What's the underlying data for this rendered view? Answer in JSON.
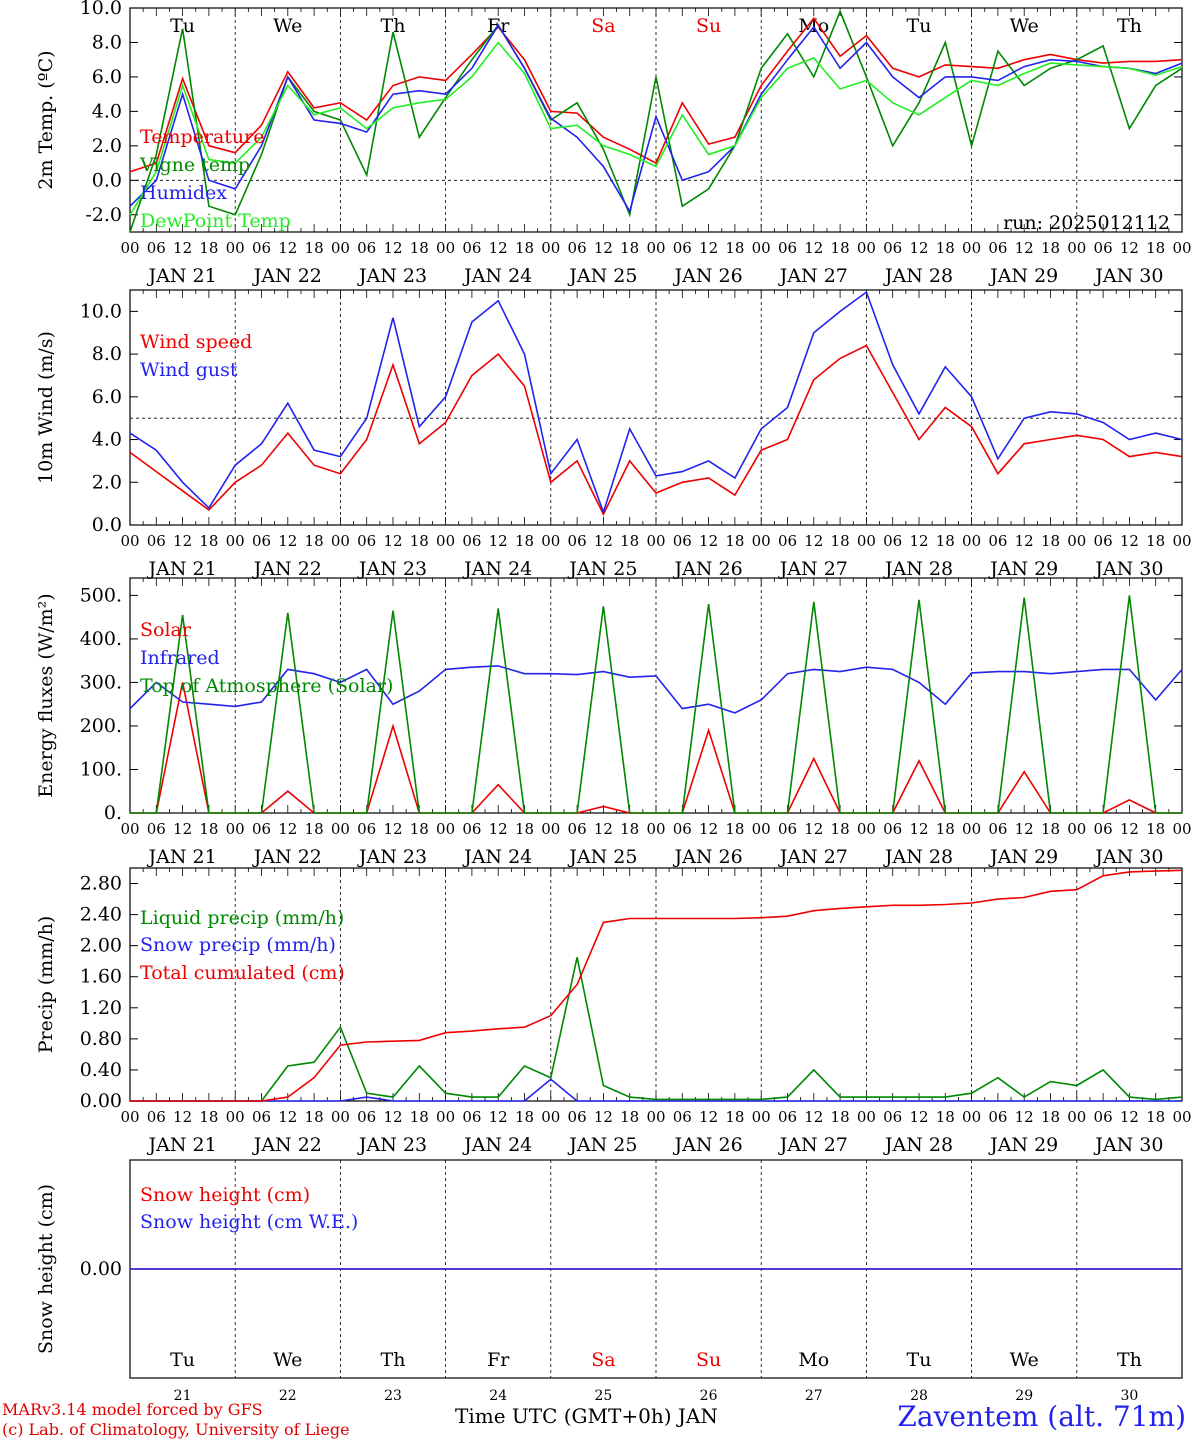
{
  "run_label": "run: 2025012112",
  "day_letters": [
    {
      "label": "Tu",
      "color": "#000000"
    },
    {
      "label": "We",
      "color": "#000000"
    },
    {
      "label": "Th",
      "color": "#000000"
    },
    {
      "label": "Fr",
      "color": "#000000"
    },
    {
      "label": "Sa",
      "color": "#ee0000"
    },
    {
      "label": "Su",
      "color": "#ee0000"
    },
    {
      "label": "Mo",
      "color": "#000000"
    },
    {
      "label": "Tu",
      "color": "#000000"
    },
    {
      "label": "We",
      "color": "#000000"
    },
    {
      "label": "Th",
      "color": "#000000"
    }
  ],
  "date_labels": [
    "JAN 21",
    "JAN 22",
    "JAN 23",
    "JAN 24",
    "JAN 25",
    "JAN 26",
    "JAN 27",
    "JAN 28",
    "JAN 29",
    "JAN 30"
  ],
  "hour_ticks": [
    "00",
    "06",
    "12",
    "18"
  ],
  "day_numbers": [
    "21",
    "22",
    "23",
    "24",
    "25",
    "26",
    "27",
    "28",
    "29",
    "30"
  ],
  "x_title": "Time UTC (GMT+0h) JAN",
  "footer": {
    "line1": "MARv3.14 model forced by GFS",
    "line2": "(c) Lab. of Climatology, University of Liege"
  },
  "station": "Zaventem (alt. 71m)",
  "chart_data": [
    {
      "type": "line",
      "ylabel": "2m Temp. (ºC)",
      "ylim": [
        -3,
        10
      ],
      "yticks": [
        "-2.0",
        "0.0",
        "2.0",
        "4.0",
        "6.0",
        "8.0",
        "10.0"
      ],
      "ytick_values": [
        -2,
        0,
        2,
        4,
        6,
        8,
        10
      ],
      "ref_line": 0,
      "x_hours": [
        0,
        6,
        12,
        18,
        24,
        30,
        36,
        42,
        48,
        54,
        60,
        66,
        72,
        78,
        84,
        90,
        96,
        102,
        108,
        114,
        120,
        126,
        132,
        138,
        144,
        150,
        156,
        162,
        168,
        174,
        180,
        186,
        192,
        198,
        204,
        210,
        216,
        222,
        228,
        234,
        240
      ],
      "series": [
        {
          "name": "Temperature",
          "color": "#ee0000",
          "values": [
            0.5,
            1.0,
            5.9,
            2.0,
            1.6,
            3.2,
            6.3,
            4.2,
            4.5,
            3.5,
            5.5,
            6.0,
            5.8,
            7.3,
            8.9,
            7.0,
            4.0,
            3.9,
            2.5,
            1.8,
            1.0,
            4.5,
            2.1,
            2.5,
            5.5,
            7.5,
            9.4,
            7.2,
            8.4,
            6.5,
            6.0,
            6.7,
            6.6,
            6.5,
            7.0,
            7.3,
            7.0,
            6.8,
            6.9,
            6.9,
            7.0
          ]
        },
        {
          "name": "Vigne temp",
          "color": "#008800",
          "values": [
            -3.0,
            1.5,
            8.8,
            -1.5,
            -2.0,
            1.5,
            6.0,
            4.0,
            3.5,
            0.3,
            8.6,
            2.5,
            4.8,
            7.0,
            9.0,
            6.5,
            3.5,
            4.5,
            1.8,
            -2.0,
            6.0,
            -1.5,
            -0.5,
            2.0,
            6.5,
            8.5,
            6.0,
            9.8,
            6.0,
            2.0,
            4.5,
            8.0,
            2.0,
            7.5,
            5.5,
            6.5,
            7.0,
            7.8,
            3.0,
            5.5,
            6.5
          ]
        },
        {
          "name": "Humidex",
          "color": "#2222ee",
          "values": [
            -1.5,
            0.0,
            5.0,
            0.0,
            -0.5,
            2.0,
            6.0,
            3.5,
            3.3,
            2.8,
            5.0,
            5.2,
            5.0,
            6.5,
            9.0,
            6.5,
            3.6,
            2.5,
            0.8,
            -1.8,
            3.7,
            0.0,
            0.5,
            2.0,
            5.0,
            7.0,
            8.9,
            6.5,
            8.0,
            6.0,
            4.8,
            6.0,
            6.0,
            5.8,
            6.6,
            7.0,
            6.9,
            6.6,
            6.5,
            6.2,
            6.8
          ]
        },
        {
          "name": "DewPoint Temp",
          "color": "#22ee22",
          "values": [
            -2.0,
            0.5,
            5.5,
            1.2,
            1.0,
            2.5,
            5.5,
            3.8,
            4.2,
            3.0,
            4.2,
            4.5,
            4.7,
            6.0,
            8.0,
            6.2,
            3.0,
            3.2,
            2.0,
            1.5,
            0.8,
            3.8,
            1.5,
            2.0,
            4.8,
            6.5,
            7.1,
            5.3,
            5.8,
            4.5,
            3.8,
            4.8,
            5.8,
            5.5,
            6.2,
            6.8,
            6.7,
            6.6,
            6.5,
            6.1,
            6.6
          ]
        }
      ]
    },
    {
      "type": "line",
      "ylabel": "10m Wind (m/s)",
      "ylim": [
        0,
        11
      ],
      "yticks": [
        "0.0",
        "2.0",
        "4.0",
        "6.0",
        "8.0",
        "10.0"
      ],
      "ytick_values": [
        0,
        2,
        4,
        6,
        8,
        10
      ],
      "ref_line": 5,
      "x_hours": [
        0,
        6,
        12,
        18,
        24,
        30,
        36,
        42,
        48,
        54,
        60,
        66,
        72,
        78,
        84,
        90,
        96,
        102,
        108,
        114,
        120,
        126,
        132,
        138,
        144,
        150,
        156,
        162,
        168,
        174,
        180,
        186,
        192,
        198,
        204,
        210,
        216,
        222,
        228,
        234,
        240
      ],
      "series": [
        {
          "name": "Wind speed",
          "color": "#ee0000",
          "values": [
            3.4,
            2.5,
            1.6,
            0.7,
            2.0,
            2.8,
            4.3,
            2.8,
            2.4,
            4.0,
            7.5,
            3.8,
            4.8,
            7.0,
            8.0,
            6.5,
            2.0,
            3.0,
            0.5,
            3.0,
            1.5,
            2.0,
            2.2,
            1.4,
            3.5,
            4.0,
            6.8,
            7.8,
            8.4,
            6.2,
            4.0,
            5.5,
            4.6,
            2.4,
            3.8,
            4.0,
            4.2,
            4.0,
            3.2,
            3.4,
            3.2
          ]
        },
        {
          "name": "Wind gust",
          "color": "#2222ee",
          "values": [
            4.3,
            3.5,
            2.0,
            0.8,
            2.8,
            3.8,
            5.7,
            3.5,
            3.2,
            5.0,
            9.7,
            4.6,
            6.0,
            9.5,
            10.5,
            8.0,
            2.4,
            4.0,
            0.6,
            4.5,
            2.3,
            2.5,
            3.0,
            2.2,
            4.5,
            5.5,
            9.0,
            10.0,
            10.9,
            7.5,
            5.2,
            7.4,
            6.0,
            3.1,
            5.0,
            5.3,
            5.2,
            4.8,
            4.0,
            4.3,
            4.0
          ]
        }
      ]
    },
    {
      "type": "line",
      "ylabel": "Energy fluxes (W/m²)",
      "ylim": [
        0,
        540
      ],
      "yticks": [
        "0.",
        "100.",
        "200.",
        "300.",
        "400.",
        "500."
      ],
      "ytick_values": [
        0,
        100,
        200,
        300,
        400,
        500
      ],
      "x_hours": [
        0,
        6,
        12,
        18,
        24,
        30,
        36,
        42,
        48,
        54,
        60,
        66,
        72,
        78,
        84,
        90,
        96,
        102,
        108,
        114,
        120,
        126,
        132,
        138,
        144,
        150,
        156,
        162,
        168,
        174,
        180,
        186,
        192,
        198,
        204,
        210,
        216,
        222,
        228,
        234,
        240
      ],
      "series": [
        {
          "name": "Solar",
          "color": "#ee0000",
          "values": [
            0,
            0,
            300,
            0,
            0,
            0,
            50,
            0,
            0,
            0,
            200,
            0,
            0,
            0,
            65,
            0,
            0,
            0,
            15,
            0,
            0,
            0,
            190,
            0,
            0,
            0,
            125,
            0,
            0,
            0,
            120,
            0,
            0,
            0,
            95,
            0,
            0,
            0,
            30,
            0,
            0
          ]
        },
        {
          "name": "Infrared",
          "color": "#2222ee",
          "values": [
            240,
            300,
            255,
            250,
            245,
            255,
            330,
            320,
            300,
            330,
            250,
            280,
            330,
            335,
            338,
            320,
            320,
            318,
            325,
            312,
            315,
            240,
            250,
            230,
            260,
            320,
            330,
            325,
            335,
            330,
            300,
            250,
            322,
            325,
            325,
            320,
            325,
            330,
            330,
            260,
            330
          ]
        },
        {
          "name": "Top of Atmosphere (Solar)",
          "color": "#008800",
          "values": [
            0,
            0,
            455,
            0,
            0,
            0,
            460,
            0,
            0,
            0,
            465,
            0,
            0,
            0,
            470,
            0,
            0,
            0,
            475,
            0,
            0,
            0,
            480,
            0,
            0,
            0,
            485,
            0,
            0,
            0,
            490,
            0,
            0,
            0,
            495,
            0,
            0,
            0,
            500,
            0,
            0
          ]
        }
      ]
    },
    {
      "type": "line",
      "ylabel": "Precip (mm/h)",
      "ylim": [
        0,
        3.0
      ],
      "yticks": [
        "0.00",
        "0.40",
        "0.80",
        "1.20",
        "1.60",
        "2.00",
        "2.40",
        "2.80"
      ],
      "ytick_values": [
        0,
        0.4,
        0.8,
        1.2,
        1.6,
        2.0,
        2.4,
        2.8
      ],
      "x_hours": [
        0,
        6,
        12,
        18,
        24,
        30,
        36,
        42,
        48,
        54,
        60,
        66,
        72,
        78,
        84,
        90,
        96,
        102,
        108,
        114,
        120,
        126,
        132,
        138,
        144,
        150,
        156,
        162,
        168,
        174,
        180,
        186,
        192,
        198,
        204,
        210,
        216,
        222,
        228,
        234,
        240
      ],
      "series": [
        {
          "name": "Liquid precip (mm/h)",
          "color": "#008800",
          "values": [
            0,
            0,
            0,
            0,
            0,
            0,
            0.45,
            0.5,
            0.95,
            0.1,
            0.05,
            0.45,
            0.1,
            0.05,
            0.05,
            0.45,
            0.3,
            1.85,
            0.2,
            0.05,
            0.02,
            0.02,
            0.02,
            0.02,
            0.02,
            0.05,
            0.4,
            0.05,
            0.05,
            0.05,
            0.05,
            0.05,
            0.1,
            0.3,
            0.05,
            0.25,
            0.2,
            0.4,
            0.05,
            0.02,
            0.05
          ]
        },
        {
          "name": "Snow precip (mm/h)",
          "color": "#2222ee",
          "values": [
            0,
            0,
            0,
            0,
            0,
            0,
            0,
            0,
            0,
            0.05,
            0,
            0,
            0,
            0,
            0,
            0,
            0.28,
            0,
            0,
            0,
            0,
            0,
            0,
            0,
            0,
            0,
            0,
            0,
            0,
            0,
            0,
            0,
            0,
            0,
            0,
            0,
            0,
            0,
            0,
            0,
            0
          ]
        },
        {
          "name": "Total cumulated (cm)",
          "color": "#ee0000",
          "values": [
            0,
            0,
            0,
            0,
            0,
            0,
            0.05,
            0.3,
            0.72,
            0.76,
            0.77,
            0.78,
            0.88,
            0.9,
            0.93,
            0.95,
            1.1,
            1.5,
            2.3,
            2.35,
            2.35,
            2.35,
            2.35,
            2.35,
            2.36,
            2.38,
            2.45,
            2.48,
            2.5,
            2.52,
            2.52,
            2.53,
            2.55,
            2.6,
            2.62,
            2.7,
            2.72,
            2.9,
            2.95,
            2.96,
            2.97
          ]
        }
      ]
    },
    {
      "type": "line",
      "ylabel": "Snow height (cm)",
      "ylim": [
        -1,
        1
      ],
      "yticks": [
        "0.00"
      ],
      "ytick_values": [
        0
      ],
      "x_hours": [
        0,
        240
      ],
      "series": [
        {
          "name": "Snow height (cm)",
          "color": "#ee0000",
          "values": [
            0,
            0
          ]
        },
        {
          "name": "Snow height (cm W.E.)",
          "color": "#2222ee",
          "values": [
            0,
            0
          ]
        }
      ]
    }
  ]
}
